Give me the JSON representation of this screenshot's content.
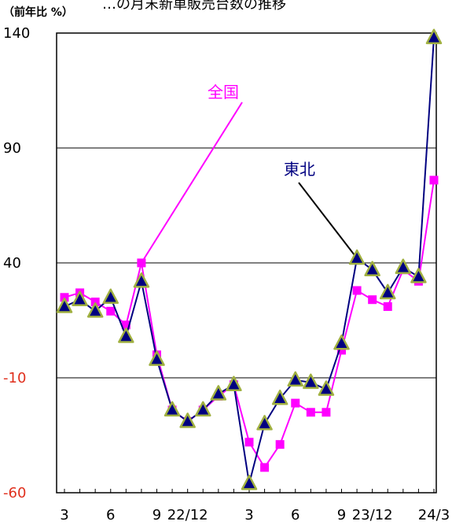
{
  "chart_data": {
    "type": "line",
    "title": "…の月末新車販売台数の推移",
    "unit_label": "（前年比 %）",
    "ylim": [
      -60,
      140
    ],
    "yticks": [
      "140",
      "90",
      "40",
      "-10",
      "-60"
    ],
    "ytick_values": [
      140,
      90,
      40,
      -10,
      -60
    ],
    "x_tick_labels": [
      {
        "index": 0,
        "label": "3"
      },
      {
        "index": 3,
        "label": "6"
      },
      {
        "index": 6,
        "label": "9"
      },
      {
        "index": 8,
        "label": "22/12"
      },
      {
        "index": 12,
        "label": "3"
      },
      {
        "index": 15,
        "label": "6"
      },
      {
        "index": 18,
        "label": "9"
      },
      {
        "index": 20,
        "label": "23/12"
      },
      {
        "index": 24,
        "label": "24/3"
      }
    ],
    "grid": true,
    "series": [
      {
        "name": "全国",
        "color": "#ff00ff",
        "marker": "square",
        "values": [
          25,
          27,
          23,
          19,
          13,
          40,
          0,
          -24,
          -29,
          -24,
          -18,
          -13,
          -38,
          -49,
          -39,
          -21,
          -25,
          -25,
          2,
          28,
          24,
          21,
          37,
          32,
          76
        ]
      },
      {
        "name": "東北",
        "color": "#000080",
        "marker": "triangle",
        "values": [
          21,
          24,
          19,
          25,
          8,
          32,
          -2,
          -24,
          -29,
          -24,
          -17,
          -13,
          -56,
          -30,
          -19,
          -11,
          -12,
          -15,
          5,
          42,
          37,
          27,
          38,
          34,
          138
        ]
      }
    ],
    "annotations": [
      {
        "text": "全国",
        "color": "#ff00ff"
      },
      {
        "text": "東北",
        "color": "#000080"
      }
    ]
  }
}
